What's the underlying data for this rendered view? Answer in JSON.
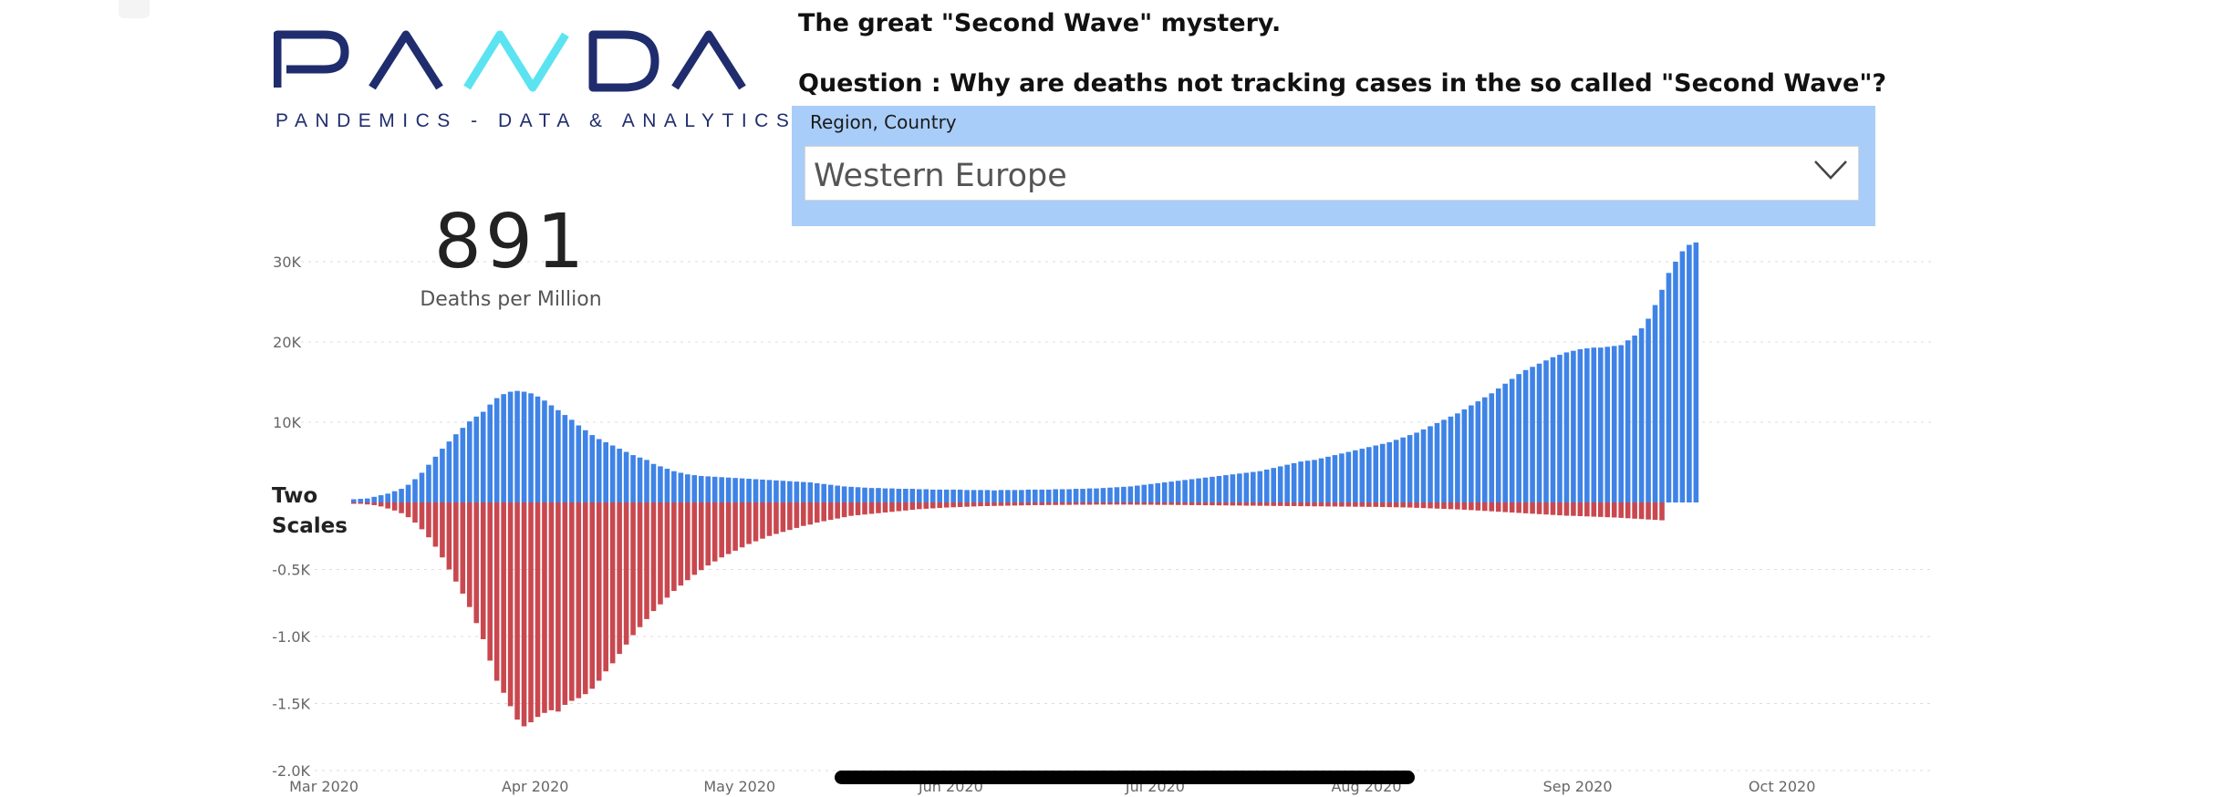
{
  "logo": {
    "word": "PANDA",
    "subtitle": "PANDEMICS - DATA & ANALYTICS"
  },
  "headline": "The great \"Second Wave\" mystery.",
  "question": "Question : Why are deaths not tracking cases in the so called \"Second Wave\"?",
  "slicer": {
    "title": "Region, Country",
    "value": "Western Europe"
  },
  "kpi": {
    "value": "891",
    "label": "Deaths per Million"
  },
  "two_scales_label_line1": "Two",
  "two_scales_label_line2": "Scales",
  "colors": {
    "cases": "#3f83e6",
    "deaths": "#c9484f",
    "logo_dark": "#1f2d6e",
    "logo_light": "#5ce3f1",
    "slicer_bg": "#a9cdf9"
  },
  "icons": {
    "dropdown": "chevron-down-icon"
  },
  "chart_data": {
    "type": "bar",
    "y_top": {
      "ticks": [
        30000,
        20000,
        10000
      ],
      "tick_labels": [
        "30K",
        "20K",
        "10K"
      ],
      "range": [
        0,
        30000
      ]
    },
    "y_bottom": {
      "ticks": [
        -500,
        -1000,
        -1500,
        -2000
      ],
      "tick_labels": [
        "-0.5K",
        "-1.0K",
        "-1.5K",
        "-2.0K"
      ],
      "range": [
        -2000,
        0
      ]
    },
    "x_tick_labels": [
      "Mar 2020",
      "Apr 2020",
      "May 2020",
      "Jun 2020",
      "Jul 2020",
      "Aug 2020",
      "Sep 2020",
      "Oct 2020"
    ],
    "grid": true,
    "series": [
      {
        "x_start": "2020-03-05",
        "x_end": "2020-10-22",
        "values": [
          400,
          450,
          500,
          700,
          900,
          1100,
          1400,
          1700,
          2200,
          2900,
          3700,
          4700,
          5700,
          6700,
          7600,
          8500,
          9300,
          10100,
          10700,
          11300,
          12200,
          13000,
          13500,
          13800,
          13900,
          13800,
          13600,
          13200,
          12700,
          12100,
          11500,
          10900,
          10300,
          9600,
          9000,
          8400,
          7900,
          7500,
          7100,
          6700,
          6300,
          5900,
          5600,
          5300,
          4800,
          4500,
          4200,
          3900,
          3700,
          3500,
          3400,
          3300,
          3250,
          3200,
          3150,
          3100,
          3050,
          3000,
          2950,
          2900,
          2850,
          2800,
          2750,
          2700,
          2650,
          2600,
          2550,
          2500,
          2400,
          2300,
          2200,
          2100,
          2000,
          1950,
          1900,
          1850,
          1800,
          1800,
          1750,
          1750,
          1700,
          1700,
          1700,
          1650,
          1650,
          1600,
          1600,
          1600,
          1600,
          1600,
          1550,
          1550,
          1550,
          1550,
          1500,
          1550,
          1550,
          1550,
          1550,
          1600,
          1600,
          1600,
          1600,
          1650,
          1650,
          1650,
          1700,
          1700,
          1750,
          1750,
          1800,
          1850,
          1900,
          1950,
          2000,
          2100,
          2200,
          2300,
          2400,
          2500,
          2600,
          2700,
          2800,
          2900,
          3000,
          3100,
          3200,
          3300,
          3400,
          3500,
          3600,
          3700,
          3800,
          3900,
          4100,
          4300,
          4500,
          4700,
          4900,
          5100,
          5200,
          5300,
          5500,
          5700,
          5900,
          6100,
          6300,
          6500,
          6700,
          6900,
          7100,
          7300,
          7500,
          7800,
          8100,
          8400,
          8700,
          9100,
          9500,
          9900,
          10300,
          10700,
          11100,
          11600,
          12100,
          12600,
          13100,
          13600,
          14200,
          14800,
          15400,
          16000,
          16500,
          16900,
          17300,
          17700,
          18100,
          18400,
          18700,
          18900,
          19100,
          19200,
          19300,
          19300,
          19400,
          19500,
          19600,
          20200,
          20800,
          21700,
          22900,
          24600,
          26500,
          28600,
          30000,
          31300,
          32100,
          32400
        ]
      },
      {
        "x_start": "2020-03-05",
        "x_end": "2020-10-22",
        "values": [
          -10,
          -10,
          -15,
          -20,
          -30,
          -45,
          -60,
          -80,
          -110,
          -150,
          -200,
          -260,
          -330,
          -410,
          -500,
          -590,
          -680,
          -780,
          -900,
          -1020,
          -1180,
          -1330,
          -1420,
          -1520,
          -1620,
          -1670,
          -1640,
          -1600,
          -1570,
          -1550,
          -1560,
          -1510,
          -1480,
          -1460,
          -1430,
          -1390,
          -1330,
          -1260,
          -1200,
          -1130,
          -1060,
          -990,
          -930,
          -870,
          -810,
          -760,
          -710,
          -660,
          -620,
          -580,
          -540,
          -505,
          -470,
          -440,
          -410,
          -385,
          -360,
          -335,
          -310,
          -290,
          -270,
          -250,
          -235,
          -220,
          -205,
          -190,
          -175,
          -165,
          -150,
          -140,
          -130,
          -120,
          -110,
          -100,
          -95,
          -90,
          -85,
          -80,
          -75,
          -70,
          -65,
          -60,
          -55,
          -50,
          -47,
          -44,
          -41,
          -38,
          -36,
          -34,
          -32,
          -30,
          -28,
          -27,
          -26,
          -25,
          -24,
          -23,
          -22,
          -21,
          -20,
          -20,
          -19,
          -19,
          -18,
          -18,
          -17,
          -17,
          -17,
          -16,
          -16,
          -16,
          -16,
          -16,
          -16,
          -17,
          -17,
          -17,
          -18,
          -18,
          -18,
          -19,
          -19,
          -20,
          -20,
          -21,
          -21,
          -22,
          -22,
          -23,
          -23,
          -24,
          -24,
          -25,
          -25,
          -26,
          -26,
          -27,
          -27,
          -28,
          -28,
          -29,
          -29,
          -30,
          -30,
          -31,
          -31,
          -32,
          -32,
          -33,
          -33,
          -34,
          -35,
          -36,
          -37,
          -38,
          -40,
          -42,
          -44,
          -46,
          -48,
          -50,
          -52,
          -54,
          -57,
          -60,
          -63,
          -66,
          -69,
          -72,
          -75,
          -78,
          -81,
          -84,
          -87,
          -90,
          -93,
          -96,
          -99,
          -100,
          -102,
          -104,
          -106,
          -108,
          -110,
          -112,
          -115,
          -118,
          -121,
          -124,
          -127,
          -130,
          -133
        ]
      }
    ]
  }
}
